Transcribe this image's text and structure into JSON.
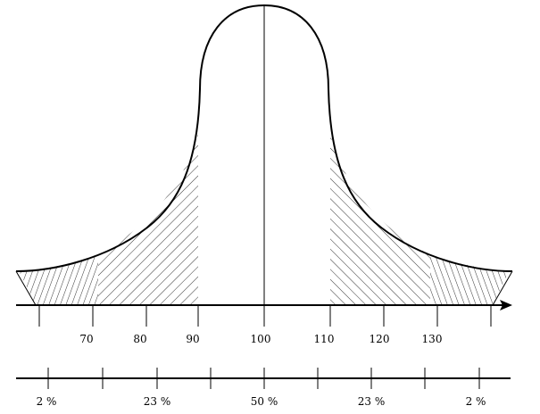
{
  "axis": {
    "tick_labels": [
      "70",
      "80",
      "90",
      "100",
      "110",
      "120",
      "130"
    ]
  },
  "bands": {
    "percent_labels": [
      "2 %",
      "23 %",
      "50 %",
      "23 %",
      "2 %"
    ]
  },
  "colors": {
    "ink": "#000000",
    "background": "#ffffff"
  }
}
